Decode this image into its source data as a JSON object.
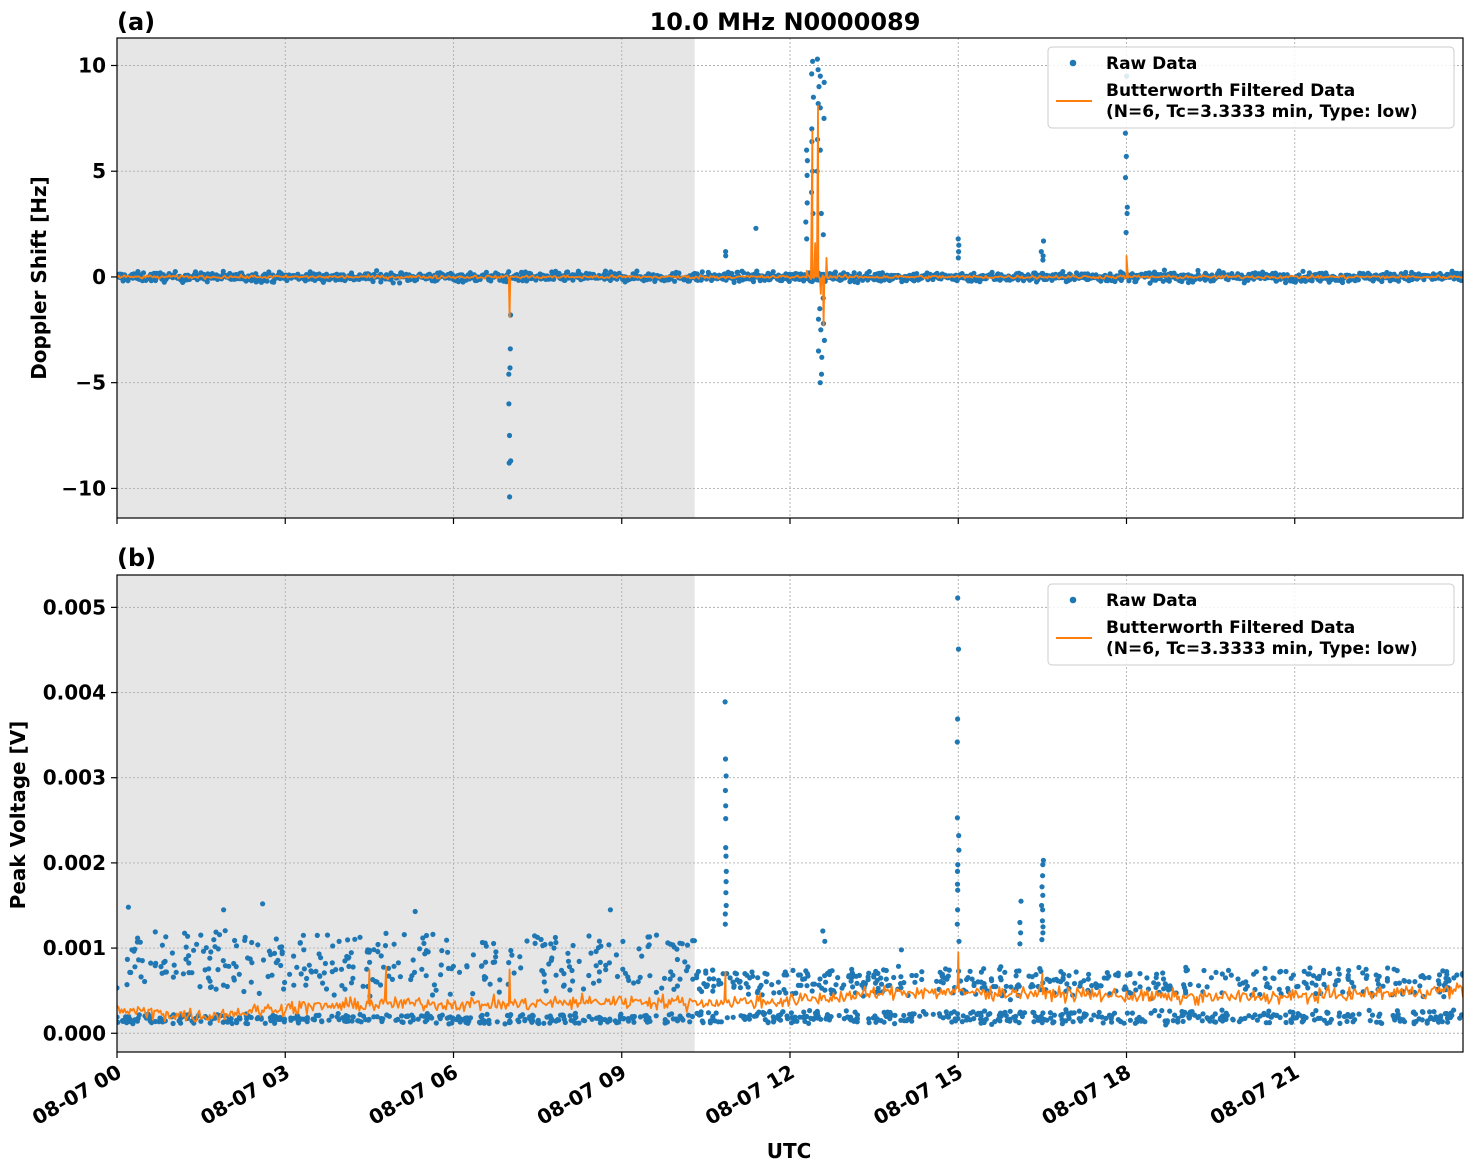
{
  "chart_data": [
    {
      "type": "scatter",
      "panel_label": "(a)",
      "title": "10.0 MHz N0000089",
      "ylabel": "Doppler Shift [Hz]",
      "xlabel": "",
      "x_unit": "hours UTC since 08-07 00",
      "xlim": [
        0,
        24
      ],
      "ylim": [
        -11.4,
        11.3
      ],
      "y_ticks": [
        10,
        5,
        0,
        -5,
        -10
      ],
      "y_tick_labels": [
        "10",
        "5",
        "0",
        "−5",
        "−10"
      ],
      "x_ticks": [
        0,
        3,
        6,
        9,
        12,
        15,
        18,
        21
      ],
      "night_shade": [
        0,
        10.3
      ],
      "grid": true,
      "legend_position": "top-right",
      "legend": [
        "Raw Data",
        "Butterworth Filtered Data",
        "(N=6, Tc=3.3333 min, Type: low)"
      ],
      "series": [
        {
          "name": "Raw Data",
          "color": "#1f77b4",
          "kind": "points",
          "baseline": 0.0,
          "noise": 0.22,
          "events": [
            {
              "x": 7.0,
              "y": [
                -10.4,
                -8.8,
                -8.7,
                -7.5,
                -6.0,
                -4.6,
                -4.3,
                -3.4,
                -1.8
              ]
            },
            {
              "x": 10.85,
              "y": [
                1.2,
                1.0
              ]
            },
            {
              "x": 11.4,
              "y": [
                2.3
              ]
            },
            {
              "x": 12.3,
              "y": [
                6.0,
                5.5,
                4.8,
                3.5,
                2.6,
                1.8
              ]
            },
            {
              "x": 12.4,
              "y": [
                10.2,
                9.6,
                8.5,
                7.0,
                6.4,
                5.0,
                4.0,
                3.0
              ]
            },
            {
              "x": 12.5,
              "y": [
                10.3,
                9.8,
                9.0,
                8.2,
                6.5,
                5.0,
                -2.0,
                -3.5
              ]
            },
            {
              "x": 12.55,
              "y": [
                9.5,
                8.0,
                6.0,
                3.0,
                -1.5,
                -2.5,
                -3.8,
                -4.6,
                -5.0
              ]
            },
            {
              "x": 12.6,
              "y": [
                9.2,
                7.5,
                2.0,
                -1.0,
                -2.2,
                -3.0
              ]
            },
            {
              "x": 15.0,
              "y": [
                1.8,
                1.5,
                1.2,
                0.9
              ]
            },
            {
              "x": 16.5,
              "y": [
                1.7,
                1.2,
                1.0,
                0.8
              ]
            },
            {
              "x": 18.0,
              "y": [
                9.5,
                6.8,
                5.7,
                4.7,
                3.3,
                3.0,
                2.1
              ]
            }
          ]
        },
        {
          "name": "Butterworth Filtered Data",
          "color": "#ff7f0e",
          "kind": "line",
          "baseline": 0.0,
          "noise": 0.1,
          "events": [
            {
              "x": 7.0,
              "y": -1.9
            },
            {
              "x": 12.3,
              "y": 0.3
            },
            {
              "x": 12.4,
              "y": 6.9
            },
            {
              "x": 12.45,
              "y": 1.6
            },
            {
              "x": 12.5,
              "y": 8.1
            },
            {
              "x": 12.55,
              "y": -0.8
            },
            {
              "x": 12.6,
              "y": -2.3
            },
            {
              "x": 12.65,
              "y": 0.9
            },
            {
              "x": 18.0,
              "y": 1.0
            }
          ]
        }
      ]
    },
    {
      "type": "scatter",
      "panel_label": "(b)",
      "title": "",
      "ylabel": "Peak Voltage [V]",
      "xlabel": "UTC",
      "x_unit": "hours UTC since 08-07 00",
      "xlim": [
        0,
        24
      ],
      "ylim": [
        -0.00022,
        0.00538
      ],
      "y_ticks": [
        0.005,
        0.004,
        0.003,
        0.002,
        0.001,
        0.0
      ],
      "y_tick_labels": [
        "0.005",
        "0.004",
        "0.003",
        "0.002",
        "0.001",
        "0.000"
      ],
      "x_ticks": [
        0,
        3,
        6,
        9,
        12,
        15,
        18,
        21
      ],
      "x_tick_labels": [
        "08-07 00",
        "08-07 03",
        "08-07 06",
        "08-07 09",
        "08-07 12",
        "08-07 15",
        "08-07 18",
        "08-07 21"
      ],
      "night_shade": [
        0,
        10.3
      ],
      "grid": true,
      "legend_position": "top-right",
      "legend": [
        "Raw Data",
        "Butterworth Filtered Data",
        "(N=6, Tc=3.3333 min, Type: low)"
      ],
      "series": [
        {
          "name": "Raw Data",
          "color": "#1f77b4",
          "kind": "points",
          "bands": [
            {
              "x": [
                0,
                10.3
              ],
              "low": 0.00012,
              "high": 0.00022
            },
            {
              "x": [
                0,
                10.3
              ],
              "low": 0.0005,
              "high": 0.00115
            },
            {
              "x": [
                10.3,
                24
              ],
              "low": 0.00012,
              "high": 0.00026
            },
            {
              "x": [
                10.3,
                24
              ],
              "low": 0.00045,
              "high": 0.00075
            }
          ],
          "events": [
            {
              "x": 2.6,
              "y": [
                0.00152
              ]
            },
            {
              "x": 0.2,
              "y": [
                0.00148
              ]
            },
            {
              "x": 1.9,
              "y": [
                0.00145
              ]
            },
            {
              "x": 5.3,
              "y": [
                0.00143
              ]
            },
            {
              "x": 8.8,
              "y": [
                0.00145
              ]
            },
            {
              "x": 10.85,
              "y": [
                0.00389,
                0.00322,
                0.00302,
                0.00285,
                0.00267,
                0.00252,
                0.00218,
                0.00208,
                0.0019,
                0.00178,
                0.00165,
                0.0015,
                0.0014,
                0.00128
              ]
            },
            {
              "x": 12.6,
              "y": [
                0.0012,
                0.00108
              ]
            },
            {
              "x": 14.0,
              "y": [
                0.00098
              ]
            },
            {
              "x": 15.0,
              "y": [
                0.00511,
                0.00451,
                0.00369,
                0.00342,
                0.00253,
                0.00232,
                0.00215,
                0.00198,
                0.0019,
                0.00175,
                0.00168,
                0.00145,
                0.00128,
                0.00108
              ]
            },
            {
              "x": 16.5,
              "y": [
                0.00203,
                0.00198,
                0.00185,
                0.00172,
                0.00162,
                0.0015,
                0.00145,
                0.00132,
                0.00125,
                0.00118,
                0.0011
              ]
            },
            {
              "x": 16.1,
              "y": [
                0.00155,
                0.0013,
                0.00118,
                0.00105
              ]
            }
          ]
        },
        {
          "name": "Butterworth Filtered Data",
          "color": "#ff7f0e",
          "kind": "line",
          "trend": [
            [
              0,
              0.00027
            ],
            [
              1.5,
              0.0002
            ],
            [
              3,
              0.0003
            ],
            [
              5,
              0.00035
            ],
            [
              7,
              0.00034
            ],
            [
              9,
              0.00038
            ],
            [
              10.3,
              0.00036
            ],
            [
              12,
              0.00038
            ],
            [
              14,
              0.00049
            ],
            [
              16.5,
              0.00047
            ],
            [
              19,
              0.00042
            ],
            [
              21,
              0.00043
            ],
            [
              24,
              0.00051
            ]
          ],
          "noise": 0.0001,
          "events": [
            {
              "x": 4.5,
              "y": 0.00075
            },
            {
              "x": 4.8,
              "y": 0.00078
            },
            {
              "x": 7.0,
              "y": 0.00075
            },
            {
              "x": 10.85,
              "y": 0.00072
            },
            {
              "x": 15.0,
              "y": 0.00095
            },
            {
              "x": 16.5,
              "y": 0.0007
            }
          ]
        }
      ]
    }
  ]
}
